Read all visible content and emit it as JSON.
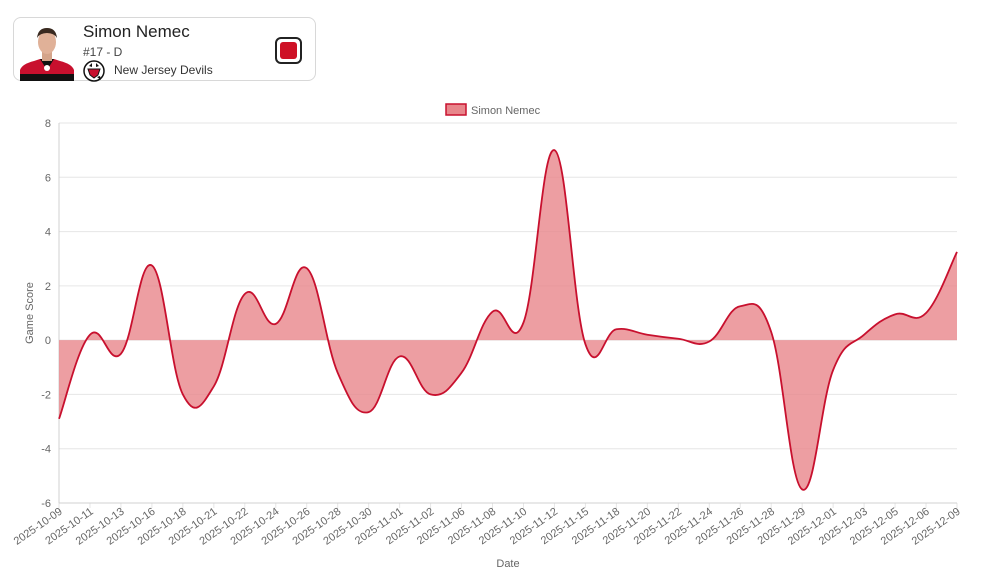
{
  "player": {
    "name": "Simon Nemec",
    "number_position": "#17 - D",
    "team": "New Jersey Devils",
    "team_color": "#ce1126",
    "photo_icon": "player-headshot",
    "team_logo_icon": "new-jersey-devils-logo"
  },
  "chart_data": {
    "type": "area",
    "title": "",
    "xlabel": "Date",
    "ylabel": "Game Score",
    "ylim": [
      -6,
      8
    ],
    "yticks": [
      -6,
      -4,
      -2,
      0,
      2,
      4,
      6,
      8
    ],
    "grid": true,
    "legend_position": "top-center",
    "series": [
      {
        "name": "Simon Nemec",
        "line_color": "#c8102e",
        "fill_color": "#e8868b",
        "x": [
          "2025-10-09",
          "2025-10-11",
          "2025-10-13",
          "2025-10-16",
          "2025-10-18",
          "2025-10-21",
          "2025-10-22",
          "2025-10-24",
          "2025-10-26",
          "2025-10-28",
          "2025-10-30",
          "2025-11-01",
          "2025-11-02",
          "2025-11-06",
          "2025-11-08",
          "2025-11-10",
          "2025-11-12",
          "2025-11-15",
          "2025-11-18",
          "2025-11-20",
          "2025-11-22",
          "2025-11-24",
          "2025-11-26",
          "2025-11-28",
          "2025-11-29",
          "2025-12-01",
          "2025-12-03",
          "2025-12-05",
          "2025-12-06",
          "2025-12-09"
        ],
        "values": [
          -2.9,
          0.2,
          -0.5,
          2.75,
          -2.0,
          -1.7,
          1.7,
          0.6,
          2.65,
          -1.2,
          -2.65,
          -0.6,
          -2.0,
          -1.2,
          1.05,
          0.65,
          7.0,
          -0.15,
          0.4,
          0.2,
          0.05,
          -0.05,
          1.25,
          0.3,
          -5.5,
          -1.1,
          0.2,
          0.95,
          1.0,
          3.25
        ]
      }
    ]
  }
}
